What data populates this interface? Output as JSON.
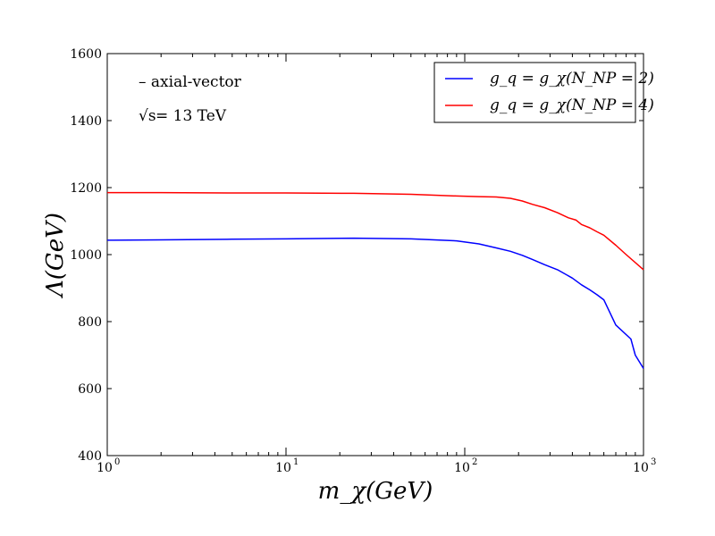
{
  "chart_data": {
    "type": "line",
    "x_scale": "log",
    "xlim": [
      1,
      1000
    ],
    "ylim": [
      400,
      1600
    ],
    "xlabel": "m_χ(GeV)",
    "ylabel": "Λ(GeV)",
    "y_ticks": [
      400,
      600,
      800,
      1000,
      1200,
      1400,
      1600
    ],
    "x_ticks": [
      {
        "base": "10",
        "exp": "0"
      },
      {
        "base": "10",
        "exp": "1"
      },
      {
        "base": "10",
        "exp": "2"
      },
      {
        "base": "10",
        "exp": "3"
      }
    ],
    "annotations": {
      "line1": "– axial-vector",
      "line2_sqrt": "√s",
      "line2_rest": " = 13  TeV"
    },
    "legend_position": "top-right",
    "series": [
      {
        "name": "g_q = g_χ(N_NP = 2)",
        "color": "#0000ff",
        "x": [
          1,
          2,
          5,
          10,
          24,
          50,
          90,
          120,
          150,
          180,
          210,
          240,
          280,
          330,
          400,
          450,
          500,
          550,
          600,
          700,
          850,
          900,
          1000
        ],
        "y": [
          1043,
          1044,
          1046,
          1047,
          1049,
          1047,
          1041,
          1032,
          1020,
          1010,
          998,
          985,
          970,
          955,
          930,
          910,
          895,
          880,
          865,
          790,
          748,
          700,
          660
        ]
      },
      {
        "name": "g_q = g_χ(N_NP = 4)",
        "color": "#ff0000",
        "x": [
          1,
          2,
          5,
          10,
          24,
          50,
          90,
          120,
          150,
          180,
          210,
          240,
          280,
          330,
          380,
          420,
          450,
          500,
          550,
          600,
          700,
          800,
          1000
        ],
        "y": [
          1185,
          1185,
          1184,
          1184,
          1183,
          1180,
          1175,
          1173,
          1172,
          1168,
          1160,
          1150,
          1140,
          1125,
          1110,
          1103,
          1090,
          1080,
          1068,
          1058,
          1028,
          1000,
          955
        ]
      }
    ]
  }
}
